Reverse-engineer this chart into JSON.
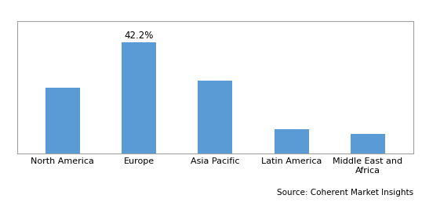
{
  "categories": [
    "North America",
    "Europe",
    "Asia Pacific",
    "Latin America",
    "Middle East and\nAfrica"
  ],
  "values": [
    25.0,
    42.2,
    27.5,
    9.0,
    7.5
  ],
  "bar_color": "#5B9BD5",
  "annotation": {
    "index": 1,
    "text": "42.2%"
  },
  "source_text": "Source: Coherent Market Insights",
  "ylim": [
    0,
    50
  ],
  "bar_width": 0.45,
  "background_color": "#ffffff",
  "border_color": "#a0a0a0",
  "tick_label_fontsize": 8.0,
  "annotation_fontsize": 8.5,
  "source_fontsize": 7.5
}
